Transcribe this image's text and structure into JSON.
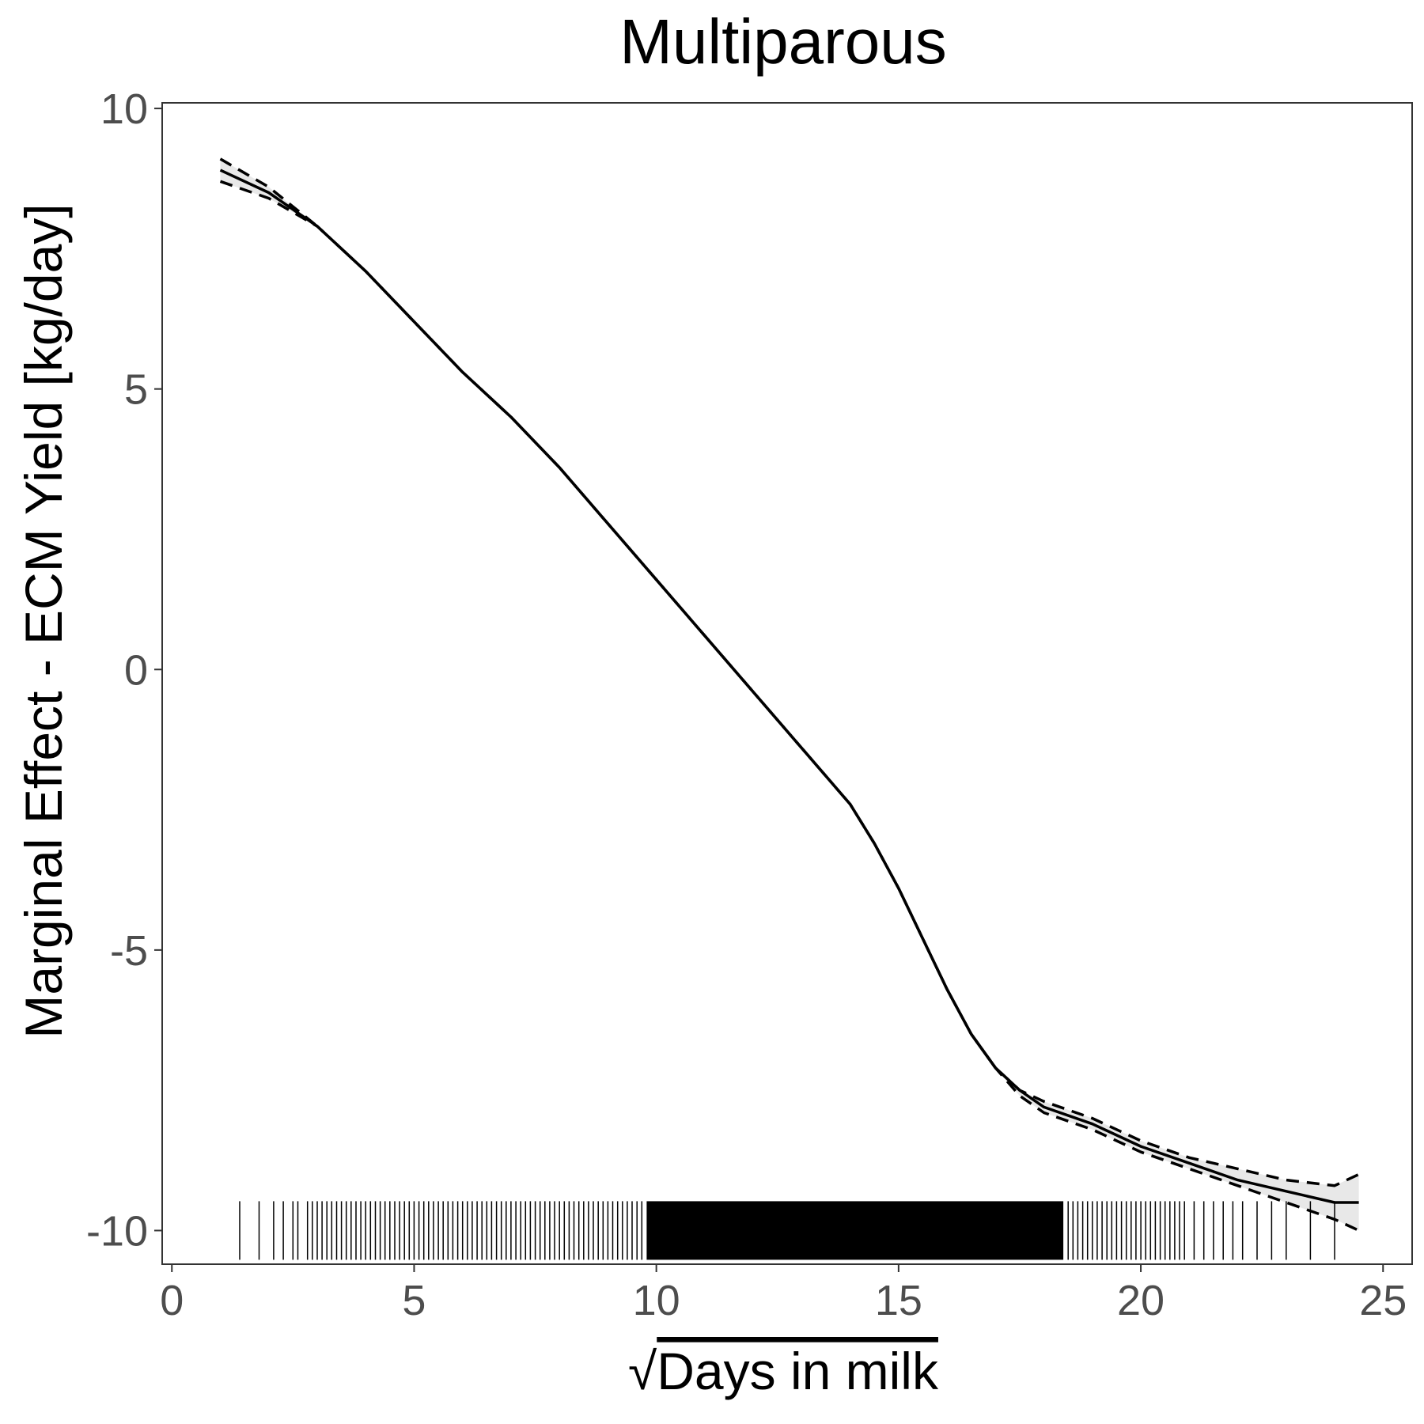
{
  "chart_data": {
    "type": "line",
    "title": "Multiparous",
    "xlabel": "Days in milk",
    "xlabel_prefix": "√",
    "ylabel": "Marginal Effect - ECM Yield [kg/day]",
    "xlim": [
      -0.2,
      25.6
    ],
    "ylim": [
      -10.6,
      10.1
    ],
    "x_ticks": [
      0,
      5,
      10,
      15,
      20,
      25
    ],
    "y_ticks": [
      -10,
      -5,
      0,
      5,
      10
    ],
    "grid": false,
    "legend": "none",
    "series": [
      {
        "role": "estimate",
        "style": "solid",
        "x": [
          1.0,
          2.0,
          3.0,
          4.0,
          5.0,
          6.0,
          7.0,
          8.0,
          9.0,
          10.0,
          11.0,
          12.0,
          13.0,
          14.0,
          14.5,
          15.0,
          15.5,
          16.0,
          16.5,
          17.0,
          17.5,
          18.0,
          19.0,
          20.0,
          21.0,
          22.0,
          23.0,
          24.0,
          24.5
        ],
        "y": [
          8.9,
          8.5,
          7.9,
          7.1,
          6.2,
          5.3,
          4.5,
          3.6,
          2.6,
          1.6,
          0.6,
          -0.4,
          -1.4,
          -2.4,
          -3.1,
          -3.9,
          -4.8,
          -5.7,
          -6.5,
          -7.1,
          -7.5,
          -7.8,
          -8.1,
          -8.5,
          -8.8,
          -9.1,
          -9.3,
          -9.5,
          -9.5
        ]
      },
      {
        "role": "upper",
        "style": "dashed",
        "x": [
          1.0,
          2.0,
          3.0,
          4.0,
          5.0,
          6.0,
          7.0,
          8.0,
          9.0,
          10.0,
          11.0,
          12.0,
          13.0,
          14.0,
          14.5,
          15.0,
          15.5,
          16.0,
          16.5,
          17.0,
          17.5,
          18.0,
          19.0,
          20.0,
          21.0,
          22.0,
          23.0,
          24.0,
          24.5
        ],
        "y": [
          9.1,
          8.6,
          7.9,
          7.1,
          6.2,
          5.3,
          4.5,
          3.6,
          2.6,
          1.6,
          0.6,
          -0.4,
          -1.4,
          -2.4,
          -3.1,
          -3.9,
          -4.8,
          -5.7,
          -6.5,
          -7.1,
          -7.5,
          -7.7,
          -8.0,
          -8.4,
          -8.7,
          -8.9,
          -9.1,
          -9.2,
          -9.0
        ]
      },
      {
        "role": "lower",
        "style": "dashed",
        "x": [
          1.0,
          2.0,
          3.0,
          4.0,
          5.0,
          6.0,
          7.0,
          8.0,
          9.0,
          10.0,
          11.0,
          12.0,
          13.0,
          14.0,
          14.5,
          15.0,
          15.5,
          16.0,
          16.5,
          17.0,
          17.5,
          18.0,
          19.0,
          20.0,
          21.0,
          22.0,
          23.0,
          24.0,
          24.5
        ],
        "y": [
          8.7,
          8.4,
          7.9,
          7.1,
          6.2,
          5.3,
          4.5,
          3.6,
          2.6,
          1.6,
          0.6,
          -0.4,
          -1.4,
          -2.4,
          -3.1,
          -3.9,
          -4.8,
          -5.7,
          -6.5,
          -7.1,
          -7.6,
          -7.9,
          -8.2,
          -8.6,
          -8.9,
          -9.2,
          -9.5,
          -9.8,
          -10.0
        ]
      }
    ],
    "rug": {
      "y": -10,
      "dense_from": 9.8,
      "dense_to": 18.4,
      "x": [
        1.4,
        1.8,
        2.1,
        2.3,
        2.5,
        2.6,
        2.8,
        2.9,
        3.0,
        3.1,
        3.2,
        3.3,
        3.4,
        3.5,
        3.6,
        3.7,
        3.8,
        3.9,
        4.0,
        4.1,
        4.2,
        4.3,
        4.4,
        4.5,
        4.6,
        4.7,
        4.8,
        4.9,
        5.0,
        5.1,
        5.2,
        5.3,
        5.4,
        5.5,
        5.6,
        5.7,
        5.8,
        5.9,
        6.0,
        6.1,
        6.2,
        6.3,
        6.4,
        6.5,
        6.6,
        6.7,
        6.8,
        6.9,
        7.0,
        7.1,
        7.2,
        7.3,
        7.4,
        7.5,
        7.6,
        7.7,
        7.8,
        7.9,
        8.0,
        8.1,
        8.2,
        8.3,
        8.4,
        8.5,
        8.6,
        8.7,
        8.8,
        8.9,
        9.0,
        9.1,
        9.2,
        9.3,
        9.4,
        9.5,
        9.6,
        9.7,
        18.5,
        18.6,
        18.7,
        18.8,
        18.9,
        19.0,
        19.1,
        19.2,
        19.3,
        19.4,
        19.5,
        19.6,
        19.7,
        19.8,
        19.9,
        20.0,
        20.1,
        20.2,
        20.3,
        20.4,
        20.5,
        20.6,
        20.7,
        20.8,
        20.9,
        21.1,
        21.3,
        21.5,
        21.7,
        21.9,
        22.1,
        22.4,
        22.7,
        23.0,
        23.5,
        24.0
      ]
    }
  }
}
